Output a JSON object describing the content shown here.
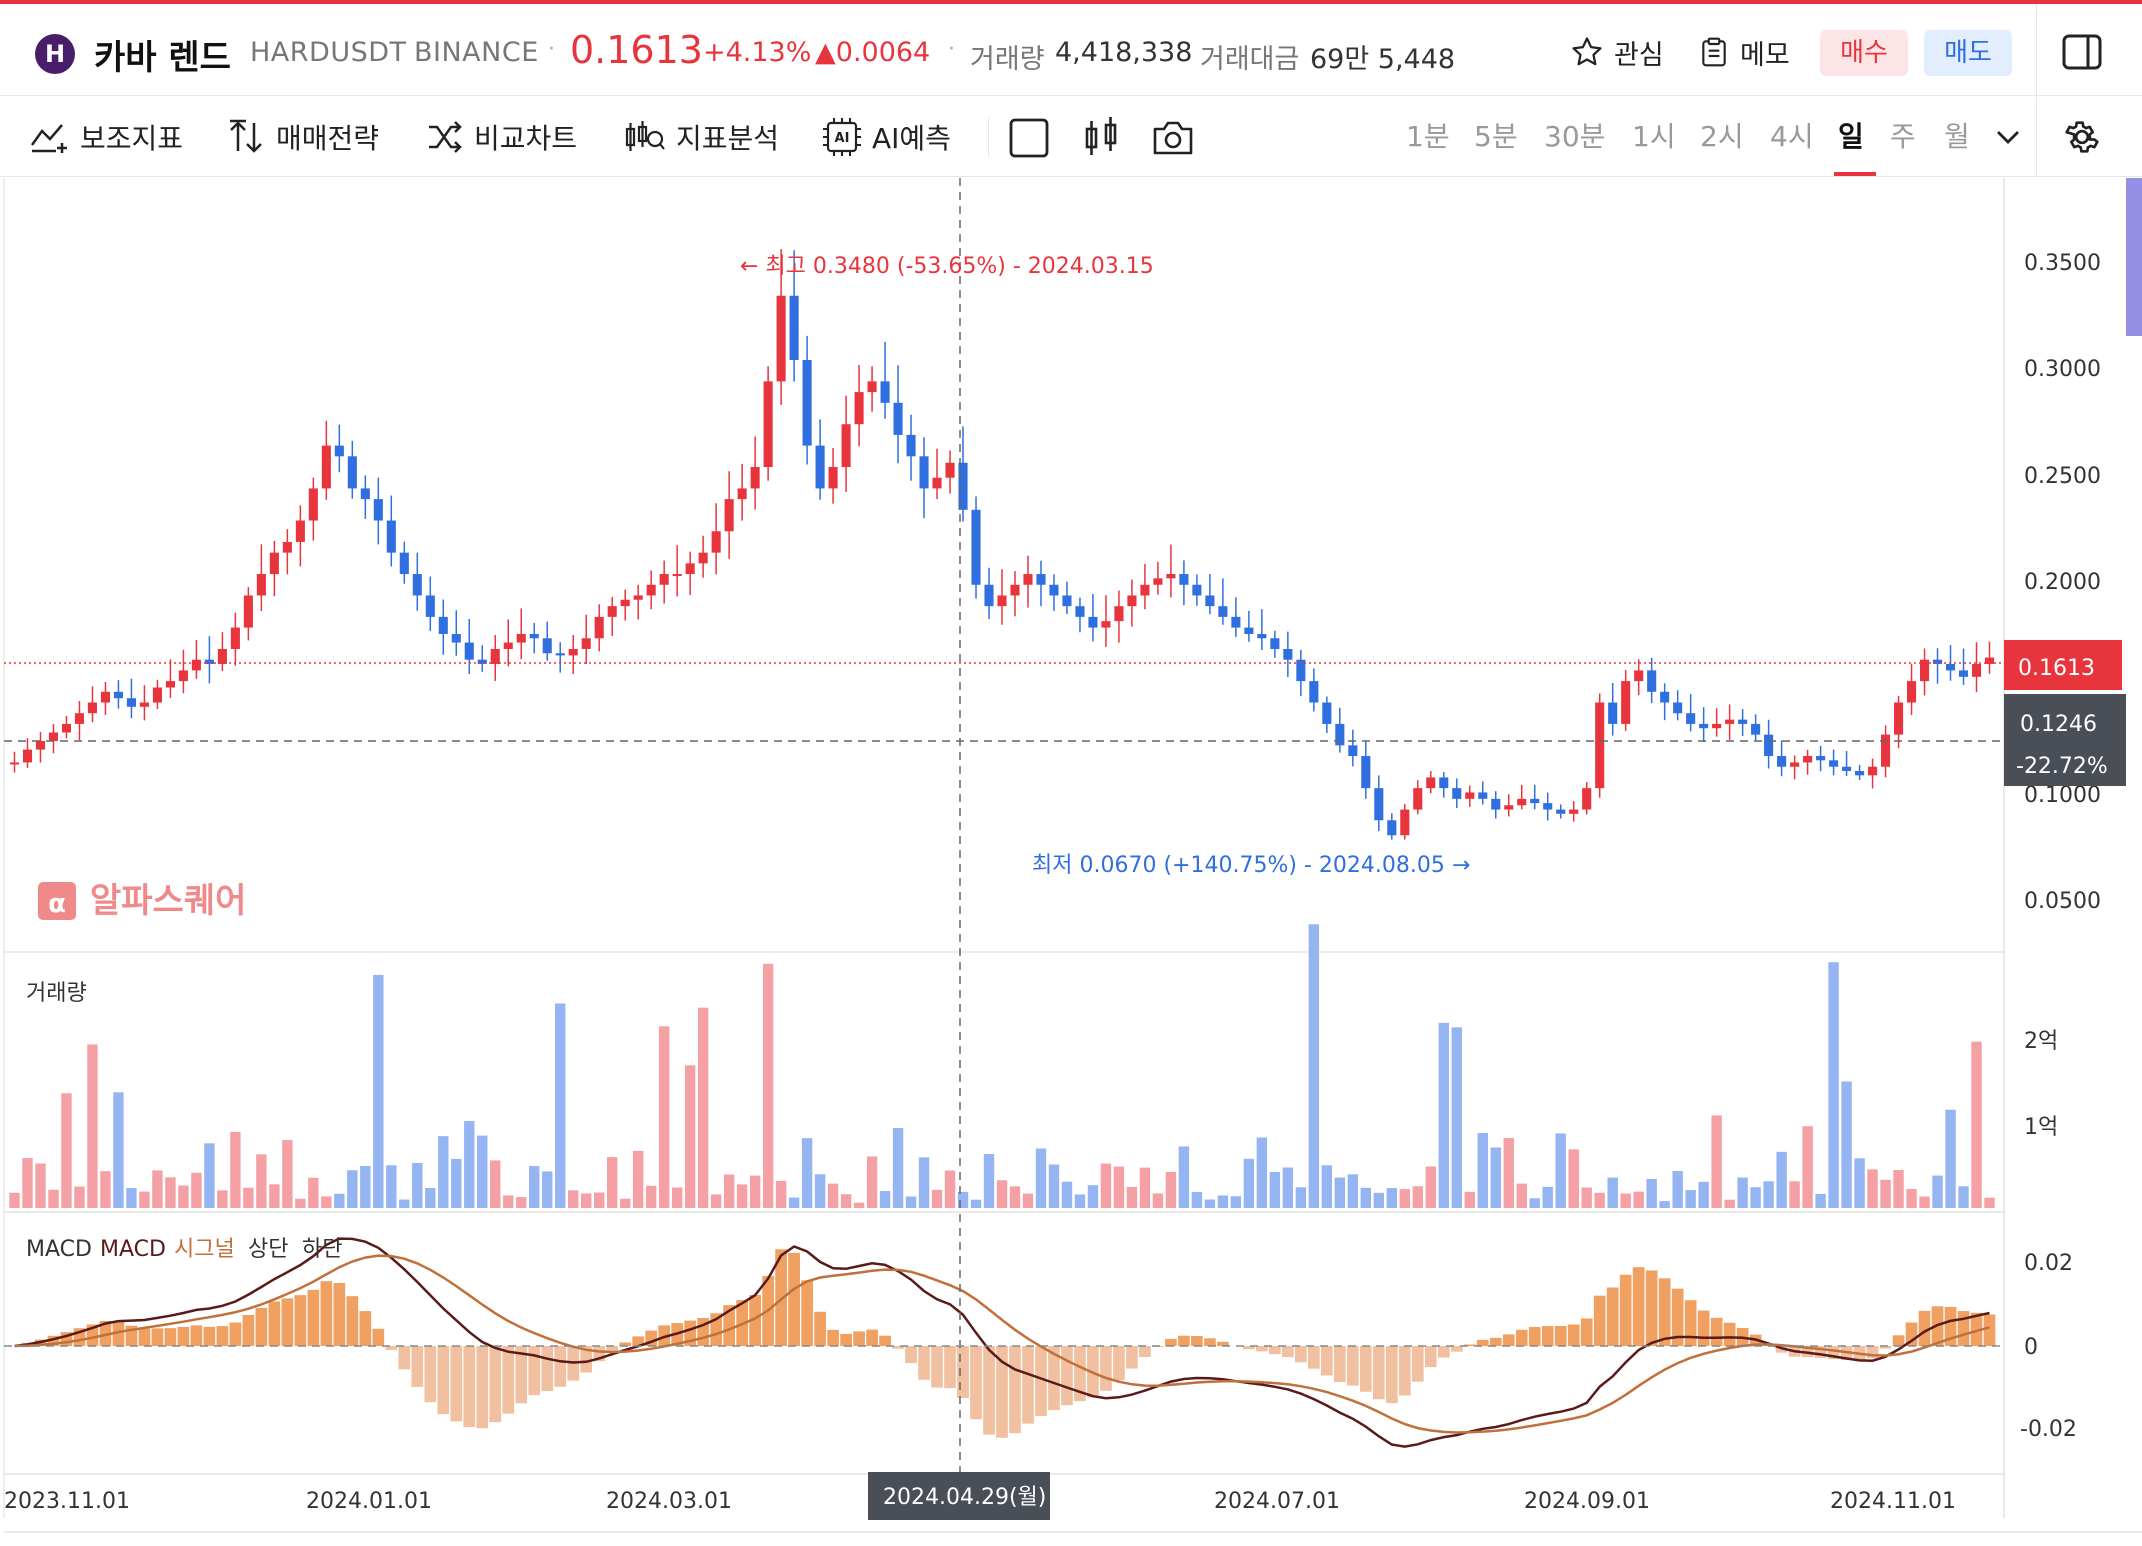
{
  "header": {
    "logo_letter": "H",
    "coin_name": "카바 렌드",
    "symbol": "HARDUSDT",
    "exchange": "BINANCE",
    "price": "0.1613",
    "change_pct": "+4.13%",
    "change_abs": "▲0.0064",
    "volume_label": "거래량",
    "volume_value": "4,418,338",
    "amount_label": "거래대금",
    "amount_value": "69만 5,448",
    "watch_label": "관심",
    "memo_label": "메모",
    "buy_label": "매수",
    "sell_label": "매도"
  },
  "toolbar": {
    "indicators_label": "보조지표",
    "strategy_label": "매매전략",
    "compare_label": "비교차트",
    "analysis_label": "지표분석",
    "ai_label": "AI예측",
    "timeframes": [
      "1분",
      "5분",
      "30분",
      "1시",
      "2시",
      "4시",
      "일",
      "주",
      "월"
    ],
    "active_timeframe": "일"
  },
  "chart": {
    "watermark": "알파스퀘어",
    "high_annotation": "최고 0.3480 (-53.65%) - 2024.03.15",
    "low_annotation": "최저 0.0670 (+140.75%) - 2024.08.05",
    "current_price_tag": "0.1613",
    "crosshair_price_tag": "0.1246",
    "crosshair_pct_tag": "-22.72%",
    "crosshair_date_tag": "2024.04.29(월)",
    "volume_title": "거래량",
    "macd_title": "MACD",
    "macd_legend": [
      "MACD",
      "시그널",
      "상단",
      "하단"
    ],
    "colors": {
      "up": "#e8353d",
      "down": "#2f6fe0",
      "macd": "#5a1a1a",
      "signal": "#c0703a",
      "hist": "#f0a060"
    }
  },
  "chart_data": {
    "type": "candlestick",
    "x_ticks": [
      "2023.11.01",
      "2024.01.01",
      "2024.03.01",
      "2024.07.01",
      "2024.09.01",
      "2024.11.01"
    ],
    "price_axis_ticks": [
      "0.3500",
      "0.3000",
      "0.2500",
      "0.2000",
      "0.1000",
      "0.0500"
    ],
    "volume_axis_ticks": [
      "2억",
      "1억"
    ],
    "macd_axis_ticks": [
      "0.02",
      "0",
      "-0.02"
    ],
    "ylim": [
      0.03,
      0.385
    ],
    "close_series": [
      0.112,
      0.118,
      0.122,
      0.126,
      0.13,
      0.135,
      0.14,
      0.145,
      0.142,
      0.138,
      0.14,
      0.147,
      0.15,
      0.155,
      0.16,
      0.158,
      0.165,
      0.175,
      0.19,
      0.2,
      0.21,
      0.215,
      0.225,
      0.24,
      0.26,
      0.255,
      0.24,
      0.235,
      0.225,
      0.21,
      0.2,
      0.19,
      0.18,
      0.172,
      0.168,
      0.16,
      0.158,
      0.165,
      0.168,
      0.172,
      0.17,
      0.163,
      0.162,
      0.165,
      0.17,
      0.18,
      0.185,
      0.188,
      0.19,
      0.195,
      0.2,
      0.2,
      0.205,
      0.21,
      0.22,
      0.235,
      0.24,
      0.25,
      0.29,
      0.33,
      0.3,
      0.26,
      0.24,
      0.25,
      0.27,
      0.285,
      0.29,
      0.28,
      0.265,
      0.255,
      0.24,
      0.245,
      0.252,
      0.23,
      0.195,
      0.185,
      0.19,
      0.195,
      0.2,
      0.195,
      0.19,
      0.185,
      0.18,
      0.175,
      0.178,
      0.185,
      0.19,
      0.195,
      0.198,
      0.2,
      0.195,
      0.19,
      0.185,
      0.18,
      0.175,
      0.172,
      0.17,
      0.165,
      0.16,
      0.15,
      0.14,
      0.13,
      0.12,
      0.115,
      0.1,
      0.085,
      0.078,
      0.09,
      0.1,
      0.105,
      0.1,
      0.095,
      0.098,
      0.095,
      0.09,
      0.092,
      0.095,
      0.093,
      0.09,
      0.088,
      0.09,
      0.1,
      0.14,
      0.13,
      0.15,
      0.155,
      0.145,
      0.14,
      0.135,
      0.13,
      0.128,
      0.13,
      0.132,
      0.13,
      0.125,
      0.115,
      0.11,
      0.112,
      0.115,
      0.113,
      0.11,
      0.108,
      0.106,
      0.11,
      0.125,
      0.14,
      0.15,
      0.16,
      0.158,
      0.155,
      0.152,
      0.158,
      0.161
    ]
  }
}
